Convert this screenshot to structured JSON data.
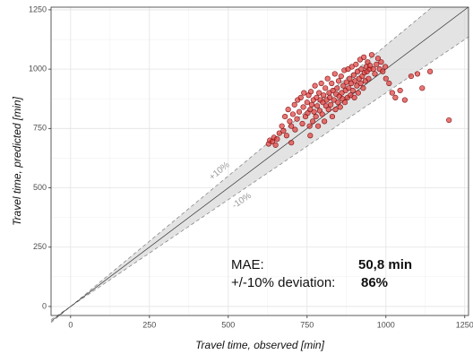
{
  "chart_data": {
    "type": "scatter",
    "x_label": "Travel time, observed [min]",
    "y_label": "Travel time, predicted [min]",
    "xlim": [
      -62,
      1262
    ],
    "ylim": [
      -38,
      1261
    ],
    "xticks": [
      0,
      250,
      500,
      750,
      1000,
      1250
    ],
    "yticks": [
      0,
      250,
      500,
      750,
      1000,
      1250
    ],
    "grid": true,
    "band": 10,
    "band_labels": [
      "+10%",
      "-10%"
    ],
    "annotation": {
      "mae_label": "MAE:",
      "mae_value": "50,8 min",
      "dev_label": "+/-10% deviation:",
      "dev_value": "86%"
    },
    "series": [
      {
        "color": "#e03a3a",
        "x": [
          628,
          632,
          640,
          645,
          655,
          662,
          670,
          675,
          680,
          685,
          690,
          695,
          700,
          705,
          710,
          712,
          718,
          720,
          725,
          730,
          735,
          738,
          740,
          745,
          750,
          752,
          755,
          758,
          760,
          762,
          765,
          768,
          770,
          772,
          775,
          778,
          780,
          782,
          785,
          788,
          790,
          792,
          795,
          798,
          800,
          802,
          805,
          808,
          810,
          812,
          815,
          818,
          820,
          822,
          825,
          828,
          830,
          832,
          835,
          838,
          840,
          842,
          845,
          848,
          850,
          852,
          855,
          858,
          860,
          862,
          865,
          868,
          870,
          872,
          875,
          878,
          880,
          882,
          885,
          888,
          890,
          892,
          895,
          898,
          900,
          902,
          905,
          908,
          910,
          912,
          915,
          918,
          920,
          922,
          925,
          928,
          930,
          932,
          935,
          938,
          940,
          942,
          945,
          948,
          950,
          955,
          960,
          965,
          970,
          975,
          980,
          985,
          990,
          998,
          1000,
          1010,
          1020,
          1030,
          1045,
          1060,
          1080,
          1100,
          1115,
          1140,
          1200,
          700,
          760,
          650
        ],
        "values": [
          685,
          700,
          695,
          712,
          705,
          730,
          760,
          740,
          800,
          720,
          830,
          780,
          760,
          810,
          850,
          745,
          790,
          870,
          820,
          880,
          770,
          840,
          900,
          800,
          860,
          815,
          890,
          760,
          830,
          905,
          850,
          780,
          870,
          820,
          930,
          800,
          880,
          845,
          760,
          900,
          825,
          870,
          940,
          810,
          860,
          890,
          780,
          920,
          845,
          870,
          960,
          830,
          900,
          880,
          850,
          940,
          800,
          910,
          870,
          980,
          830,
          895,
          920,
          860,
          950,
          885,
          840,
          970,
          900,
          875,
          930,
          995,
          860,
          910,
          945,
          880,
          1000,
          920,
          960,
          890,
          940,
          1010,
          910,
          975,
          880,
          950,
          1020,
          930,
          990,
          900,
          960,
          1040,
          940,
          1000,
          970,
          920,
          1050,
          985,
          950,
          1010,
          990,
          1030,
          960,
          1000,
          1015,
          1060,
          1000,
          980,
          1020,
          1045,
          1000,
          1030,
          990,
          1010,
          960,
          940,
          900,
          880,
          910,
          870,
          970,
          980,
          920,
          990,
          785,
          690,
          720,
          680
        ]
      }
    ]
  }
}
